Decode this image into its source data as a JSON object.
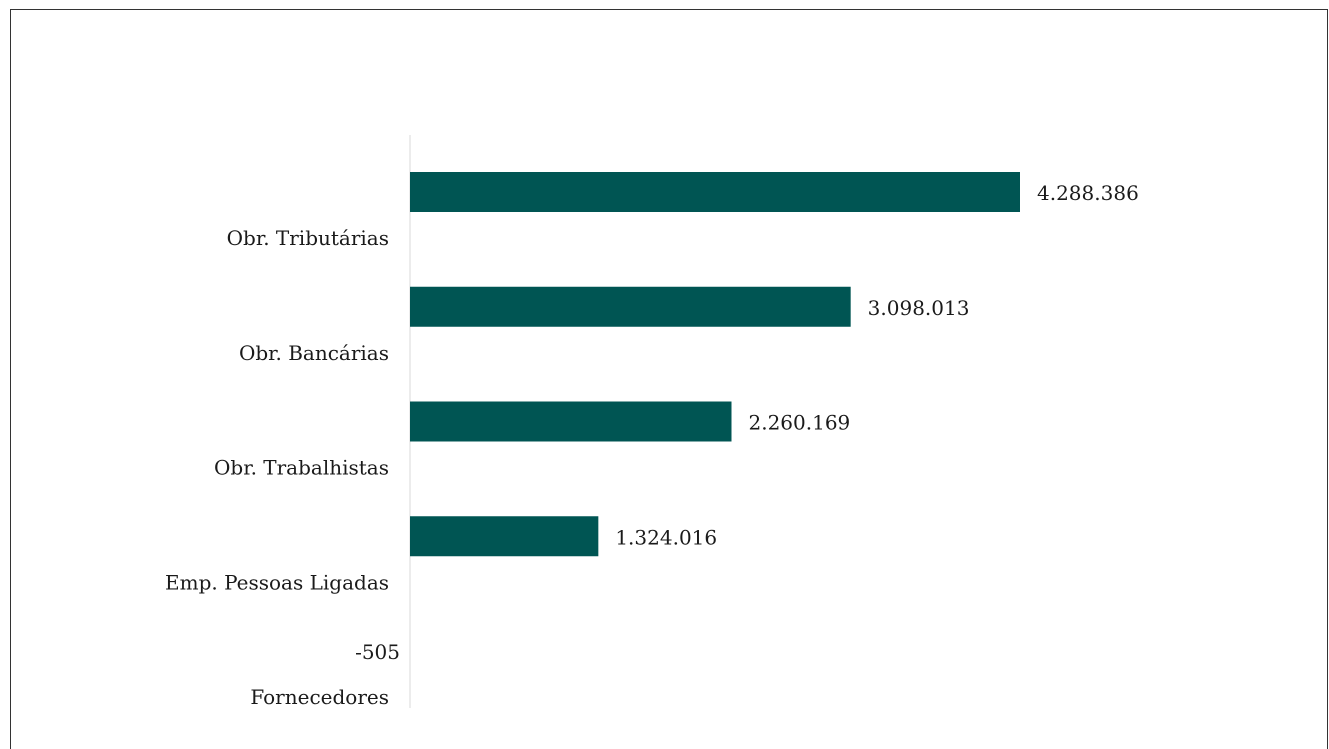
{
  "colors": {
    "bar": "#005553",
    "axis": "#d9d9d9"
  },
  "chart_data": {
    "type": "bar",
    "orientation": "horizontal",
    "title": "",
    "xlabel": "",
    "ylabel": "",
    "categories": [
      "Obr. Tributárias",
      "Obr. Bancárias",
      "Obr. Trabalhistas",
      "Emp. Pessoas Ligadas",
      "Fornecedores"
    ],
    "values": [
      4288386,
      3098013,
      2260169,
      1324016,
      -505
    ],
    "value_labels": [
      "4.288.386",
      "3.098.013",
      "2.260.169",
      "1.324.016",
      "-505"
    ],
    "xlim": [
      0,
      4500000
    ],
    "grid": false,
    "legend": "none"
  }
}
